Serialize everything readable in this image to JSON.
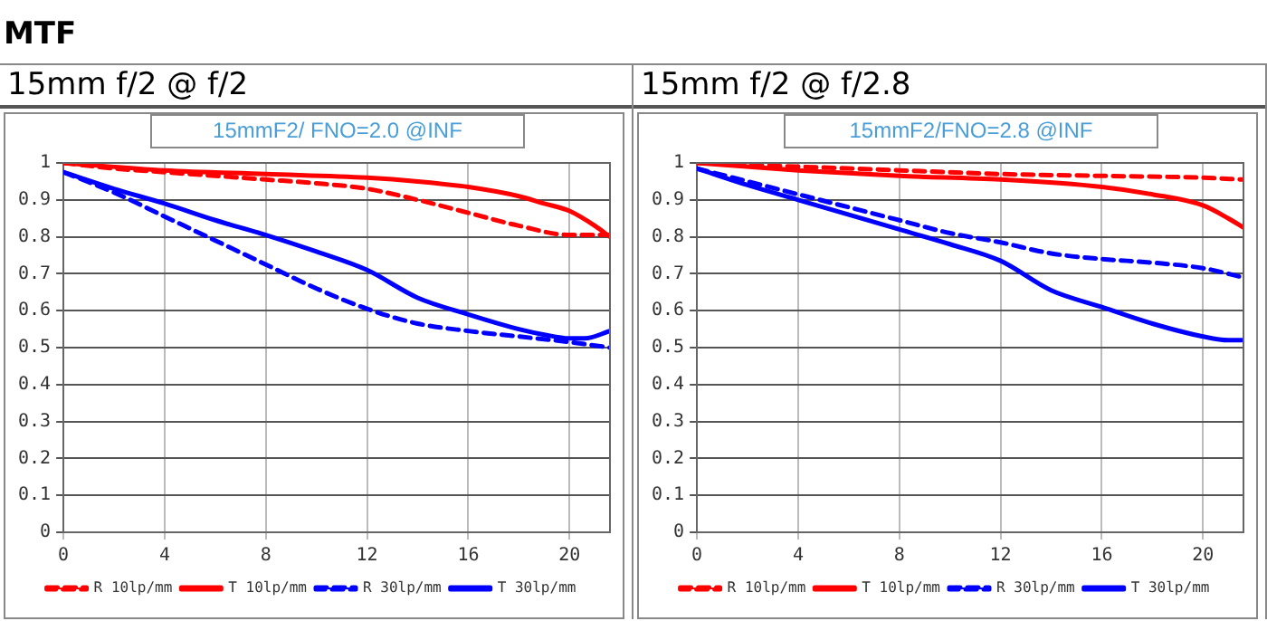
{
  "chart_data": [
    {
      "type": "line",
      "title": "15mm f/2 @ f/2",
      "subtitle": "15mmF2/ FNO=2.0 @INF",
      "annotations": [
        "MTF"
      ],
      "xlim": [
        0,
        21.6
      ],
      "xticks": [
        0,
        4,
        8,
        12,
        16,
        20
      ],
      "ylim": [
        0,
        1
      ],
      "yticks": [
        0,
        0.1,
        0.2,
        0.3,
        0.4,
        0.5,
        0.6,
        0.7,
        0.8,
        0.9,
        1
      ],
      "grid": true,
      "legend": "bottom",
      "marker": "none",
      "series": [
        {
          "name": "R 10lp/mm",
          "color": "#ff0000",
          "line_style": "dashed",
          "x": [
            0,
            2,
            4,
            6,
            8,
            10,
            12,
            14,
            16,
            18,
            20,
            21,
            21.6
          ],
          "values": [
            1,
            0.985,
            0.975,
            0.965,
            0.955,
            0.945,
            0.93,
            0.9,
            0.865,
            0.83,
            0.805,
            0.805,
            0.805
          ]
        },
        {
          "name": "T 10lp/mm",
          "color": "#ff0000",
          "line_style": "solid",
          "x": [
            0,
            4,
            8,
            12,
            14,
            16,
            18,
            19,
            20,
            21,
            21.6
          ],
          "values": [
            1,
            0.98,
            0.97,
            0.96,
            0.95,
            0.935,
            0.91,
            0.89,
            0.87,
            0.83,
            0.8
          ]
        },
        {
          "name": "R 30lp/mm",
          "color": "#0000ff",
          "line_style": "dashed",
          "x": [
            0,
            2,
            4,
            6,
            8,
            10,
            12,
            14,
            16,
            18,
            20,
            21.6
          ],
          "values": [
            0.975,
            0.92,
            0.855,
            0.79,
            0.725,
            0.66,
            0.605,
            0.565,
            0.545,
            0.53,
            0.515,
            0.5
          ]
        },
        {
          "name": "T 30lp/mm",
          "color": "#0000ff",
          "line_style": "solid",
          "x": [
            0,
            2,
            4,
            6,
            8,
            10,
            12,
            14,
            16,
            18,
            19,
            20,
            20.6,
            21.6
          ],
          "values": [
            0.975,
            0.93,
            0.89,
            0.845,
            0.805,
            0.76,
            0.71,
            0.635,
            0.59,
            0.55,
            0.535,
            0.525,
            0.525,
            0.545
          ]
        }
      ]
    },
    {
      "type": "line",
      "title": "15mm f/2 @ f/2.8",
      "subtitle": "15mmF2/FNO=2.8 @INF",
      "xlim": [
        0,
        21.6
      ],
      "xticks": [
        0,
        4,
        8,
        12,
        16,
        20
      ],
      "ylim": [
        0,
        1
      ],
      "yticks": [
        0,
        0.1,
        0.2,
        0.3,
        0.4,
        0.5,
        0.6,
        0.7,
        0.8,
        0.9,
        1
      ],
      "grid": true,
      "legend": "bottom",
      "marker": "none",
      "series": [
        {
          "name": "R 10lp/mm",
          "color": "#ff0000",
          "line_style": "dashed",
          "x": [
            0,
            4,
            8,
            12,
            16,
            20,
            21.6
          ],
          "values": [
            1,
            0.99,
            0.98,
            0.97,
            0.965,
            0.96,
            0.955
          ]
        },
        {
          "name": "T 10lp/mm",
          "color": "#ff0000",
          "line_style": "solid",
          "x": [
            0,
            4,
            8,
            12,
            16,
            18,
            20,
            21,
            21.6
          ],
          "values": [
            1,
            0.98,
            0.965,
            0.955,
            0.935,
            0.915,
            0.885,
            0.85,
            0.825
          ]
        },
        {
          "name": "R 30lp/mm",
          "color": "#0000ff",
          "line_style": "dashed",
          "x": [
            0,
            2,
            4,
            6,
            8,
            10,
            12,
            14,
            16,
            18,
            20,
            21.6
          ],
          "values": [
            0.985,
            0.95,
            0.915,
            0.88,
            0.845,
            0.81,
            0.785,
            0.755,
            0.74,
            0.73,
            0.715,
            0.69
          ]
        },
        {
          "name": "T 30lp/mm",
          "color": "#0000ff",
          "line_style": "solid",
          "x": [
            0,
            2,
            4,
            6,
            8,
            10,
            12,
            14,
            16,
            18,
            20,
            21,
            21.6
          ],
          "values": [
            0.985,
            0.94,
            0.9,
            0.86,
            0.82,
            0.78,
            0.735,
            0.655,
            0.61,
            0.565,
            0.53,
            0.52,
            0.52
          ]
        }
      ]
    }
  ]
}
